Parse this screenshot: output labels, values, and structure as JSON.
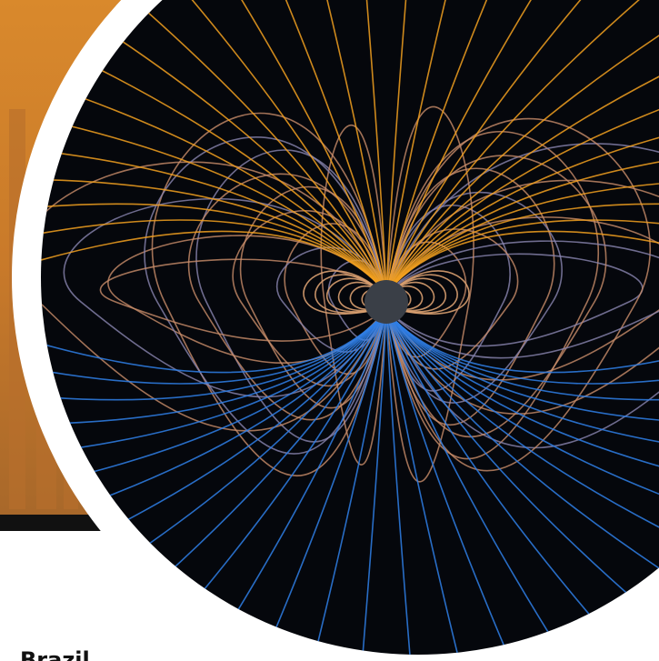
{
  "caption": "Brazil"
}
